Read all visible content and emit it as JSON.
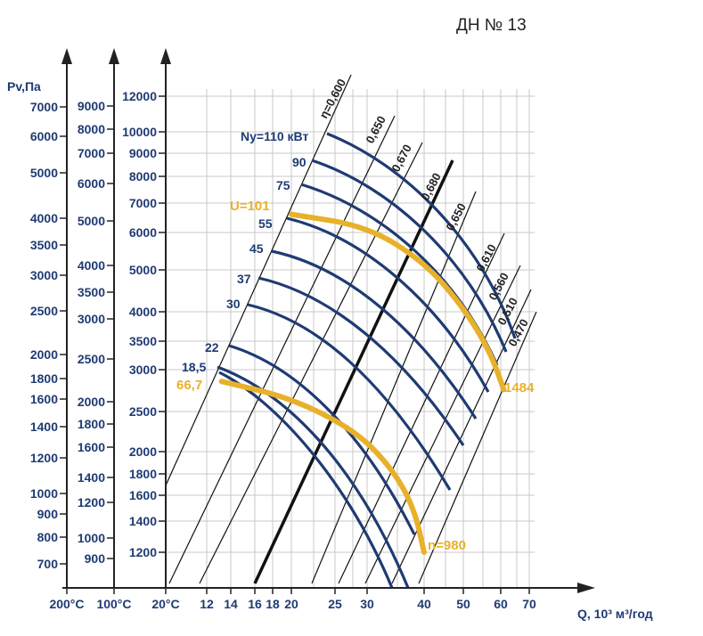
{
  "chart_data": {
    "type": "line",
    "title": "ДН № 13",
    "xlabel": "Q, 10³ м³/год",
    "ylabel": "Pv,Па",
    "x_axis": {
      "scale": "log",
      "ticks": [
        12,
        14,
        16,
        18,
        20,
        25,
        30,
        40,
        50,
        60,
        70
      ],
      "tick_labels": [
        "12",
        "14",
        "16",
        "18",
        "20",
        "25",
        "30",
        "40",
        "50",
        "60",
        "70"
      ],
      "temperature_labels": [
        "200°C",
        "100°C",
        "20°C"
      ]
    },
    "y_axes": [
      {
        "name": "200°C",
        "ticks": [
          700,
          800,
          900,
          1000,
          1200,
          1400,
          1600,
          1800,
          2000,
          2500,
          3000,
          3500,
          4000,
          5000,
          6000,
          7000
        ]
      },
      {
        "name": "100°C",
        "ticks": [
          900,
          1000,
          1200,
          1400,
          1600,
          1800,
          2000,
          2500,
          3000,
          3500,
          4000,
          5000,
          6000,
          7000,
          8000,
          9000
        ]
      },
      {
        "name": "20°C",
        "ticks": [
          1200,
          1400,
          1600,
          1800,
          2000,
          2500,
          3000,
          3500,
          4000,
          5000,
          6000,
          7000,
          8000,
          9000,
          10000,
          12000
        ]
      }
    ],
    "efficiency_lines": [
      "η=0,600",
      "0,650",
      "0,670",
      "0,680",
      "0,650",
      "0,610",
      "0,560",
      "0,510",
      "0,470"
    ],
    "power_curves": [
      "Ny=110 кВт",
      "90",
      "75",
      "55",
      "45",
      "37",
      "30",
      "22",
      "18,5"
    ],
    "speed_curves": [
      {
        "name": "n=980",
        "label_start": "66,7",
        "label_end": "n=980",
        "points": [
          [
            13.2,
            2850
          ],
          [
            20,
            2650
          ],
          [
            28,
            2250
          ],
          [
            34,
            1850
          ],
          [
            38,
            1500
          ],
          [
            40,
            1200
          ]
        ]
      },
      {
        "name": "n=1484",
        "label_start": "U=101",
        "label_end": "1484",
        "points": [
          [
            20,
            6600
          ],
          [
            30,
            6200
          ],
          [
            40,
            5200
          ],
          [
            50,
            4100
          ],
          [
            57,
            3300
          ],
          [
            61,
            2750
          ]
        ]
      }
    ]
  },
  "colors": {
    "blue": "#1f3b73",
    "yellow": "#e8b12a",
    "grid": "#c8c8c8",
    "axis": "#222222"
  }
}
